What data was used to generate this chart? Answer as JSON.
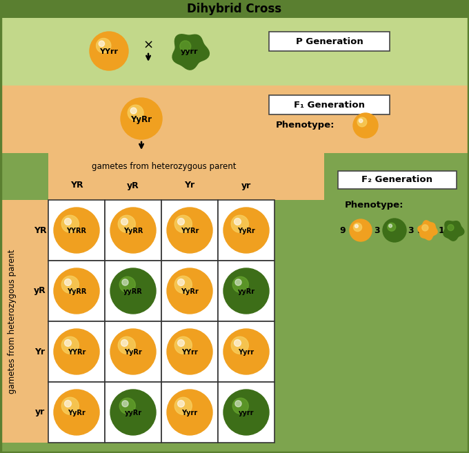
{
  "title": "Dihybrid Cross",
  "bg_outer": "#7da44e",
  "bg_p_gen": "#c2d88a",
  "bg_f1_gen": "#f0bc78",
  "bg_gametes": "#f0bc78",
  "title_bg": "#5a7f30",
  "p_gen_label": "P Generation",
  "f1_gen_label": "F₁ Generation",
  "f2_gen_label": "F₂ Generation",
  "phenotype_label": "Phenotype:",
  "gametes_top_label": "gametes from heterozygous parent",
  "gametes_side_label": "gametes from heterozygous parent",
  "col_headers": [
    "YR",
    "yR",
    "Yr",
    "yr"
  ],
  "row_headers": [
    "YR",
    "yR",
    "Yr",
    "yr"
  ],
  "p1_label": "YYrr",
  "p2_label": "yyrr",
  "f1_label": "YyRr",
  "grid_labels": [
    [
      "YYRR",
      "YyRR",
      "YYRr",
      "YyRr"
    ],
    [
      "YyRR",
      "yyRR",
      "YyRr",
      "yyRr"
    ],
    [
      "YYRr",
      "YyRr",
      "YYrr",
      "Yyrr"
    ],
    [
      "YyRr",
      "yyRr",
      "Yyrr",
      "yyrr"
    ]
  ],
  "grid_colors": [
    [
      "yellow",
      "yellow",
      "yellow",
      "yellow"
    ],
    [
      "yellow",
      "green",
      "yellow",
      "green"
    ],
    [
      "yellow",
      "yellow",
      "yellow",
      "yellow"
    ],
    [
      "yellow",
      "green",
      "yellow",
      "green"
    ]
  ],
  "yellow_main": "#f0a020",
  "yellow_hi": "#f8d060",
  "yellow_dark": "#c07010",
  "green_main": "#3d6e18",
  "green_hi": "#6aaa30",
  "green_dark": "#1e3a08",
  "border_color": "#5a7f30"
}
